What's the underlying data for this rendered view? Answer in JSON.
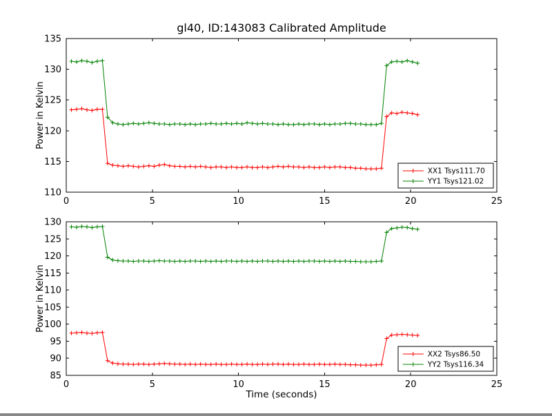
{
  "figure": {
    "title": "gl40, ID:143083 Calibrated Amplitude",
    "background_color": "#ffffff",
    "axis_color": "#000000"
  },
  "chart_data": [
    {
      "type": "line",
      "title": "gl40, ID:143083 Calibrated Amplitude",
      "xlabel": "",
      "ylabel": "Power in Kelvin",
      "xlim": [
        0,
        25
      ],
      "ylim": [
        110,
        135
      ],
      "xticks": [
        0,
        5,
        10,
        15,
        20,
        25
      ],
      "yticks": [
        110,
        115,
        120,
        125,
        130,
        135
      ],
      "grid": false,
      "legend_position": "lower right",
      "marker": "+",
      "x": [
        0.3,
        0.6,
        0.9,
        1.2,
        1.5,
        1.8,
        2.1,
        2.4,
        2.7,
        3.0,
        3.3,
        3.6,
        3.9,
        4.2,
        4.5,
        4.8,
        5.1,
        5.4,
        5.7,
        6.0,
        6.3,
        6.6,
        6.9,
        7.2,
        7.5,
        7.8,
        8.1,
        8.4,
        8.7,
        9.0,
        9.3,
        9.6,
        9.9,
        10.2,
        10.5,
        10.8,
        11.1,
        11.4,
        11.7,
        12.0,
        12.3,
        12.6,
        12.9,
        13.2,
        13.5,
        13.8,
        14.1,
        14.4,
        14.7,
        15.0,
        15.3,
        15.6,
        15.9,
        16.2,
        16.5,
        16.8,
        17.1,
        17.4,
        17.7,
        18.0,
        18.3,
        18.6,
        18.9,
        19.2,
        19.5,
        19.8,
        20.1,
        20.4
      ],
      "series": [
        {
          "name": "XX1 Tsys111.70",
          "color": "#ff0000",
          "values": [
            123.4,
            123.5,
            123.6,
            123.4,
            123.3,
            123.5,
            123.5,
            114.7,
            114.4,
            114.3,
            114.2,
            114.3,
            114.2,
            114.1,
            114.2,
            114.3,
            114.2,
            114.4,
            114.5,
            114.3,
            114.2,
            114.2,
            114.1,
            114.2,
            114.1,
            114.2,
            114.1,
            114.0,
            114.1,
            114.1,
            114.0,
            114.1,
            114.0,
            114.0,
            114.1,
            114.0,
            114.0,
            114.1,
            114.0,
            114.1,
            114.2,
            114.1,
            114.2,
            114.1,
            114.1,
            114.0,
            114.1,
            114.0,
            114.0,
            114.1,
            114.0,
            114.1,
            114.1,
            114.0,
            114.0,
            113.9,
            113.9,
            113.8,
            113.8,
            113.8,
            113.9,
            122.3,
            122.9,
            122.8,
            123.0,
            122.9,
            122.8,
            122.6
          ]
        },
        {
          "name": "YY1 Tsys121.02",
          "color": "#008000",
          "values": [
            131.3,
            131.2,
            131.4,
            131.3,
            131.1,
            131.3,
            131.4,
            122.2,
            121.3,
            121.1,
            121.0,
            121.1,
            121.2,
            121.1,
            121.2,
            121.3,
            121.2,
            121.1,
            121.1,
            121.0,
            121.1,
            121.1,
            121.0,
            121.1,
            121.0,
            121.1,
            121.1,
            121.2,
            121.1,
            121.1,
            121.2,
            121.1,
            121.2,
            121.1,
            121.3,
            121.2,
            121.1,
            121.2,
            121.1,
            121.1,
            121.0,
            121.1,
            121.0,
            121.0,
            121.1,
            121.0,
            121.1,
            121.1,
            121.0,
            121.1,
            121.0,
            121.1,
            121.1,
            121.2,
            121.2,
            121.1,
            121.1,
            121.0,
            121.0,
            121.0,
            121.2,
            130.6,
            131.2,
            131.3,
            131.2,
            131.4,
            131.2,
            131.0
          ]
        }
      ]
    },
    {
      "type": "line",
      "title": "",
      "xlabel": "Time (seconds)",
      "ylabel": "Power in Kelvin",
      "xlim": [
        0,
        25
      ],
      "ylim": [
        85,
        130
      ],
      "xticks": [
        0,
        5,
        10,
        15,
        20,
        25
      ],
      "yticks": [
        85,
        90,
        95,
        100,
        105,
        110,
        115,
        120,
        125,
        130
      ],
      "grid": false,
      "legend_position": "lower right",
      "marker": "+",
      "x": [
        0.3,
        0.6,
        0.9,
        1.2,
        1.5,
        1.8,
        2.1,
        2.4,
        2.7,
        3.0,
        3.3,
        3.6,
        3.9,
        4.2,
        4.5,
        4.8,
        5.1,
        5.4,
        5.7,
        6.0,
        6.3,
        6.6,
        6.9,
        7.2,
        7.5,
        7.8,
        8.1,
        8.4,
        8.7,
        9.0,
        9.3,
        9.6,
        9.9,
        10.2,
        10.5,
        10.8,
        11.1,
        11.4,
        11.7,
        12.0,
        12.3,
        12.6,
        12.9,
        13.2,
        13.5,
        13.8,
        14.1,
        14.4,
        14.7,
        15.0,
        15.3,
        15.6,
        15.9,
        16.2,
        16.5,
        16.8,
        17.1,
        17.4,
        17.7,
        18.0,
        18.3,
        18.6,
        18.9,
        19.2,
        19.5,
        19.8,
        20.1,
        20.4
      ],
      "series": [
        {
          "name": "XX2 Tsys86.50",
          "color": "#ff0000",
          "values": [
            97.4,
            97.5,
            97.6,
            97.4,
            97.3,
            97.5,
            97.6,
            89.3,
            88.6,
            88.4,
            88.3,
            88.3,
            88.2,
            88.3,
            88.3,
            88.2,
            88.3,
            88.4,
            88.5,
            88.4,
            88.3,
            88.3,
            88.2,
            88.3,
            88.2,
            88.3,
            88.2,
            88.2,
            88.3,
            88.2,
            88.2,
            88.3,
            88.2,
            88.2,
            88.3,
            88.2,
            88.2,
            88.3,
            88.2,
            88.3,
            88.3,
            88.2,
            88.3,
            88.2,
            88.2,
            88.3,
            88.2,
            88.2,
            88.3,
            88.2,
            88.2,
            88.3,
            88.2,
            88.2,
            88.1,
            88.1,
            88.0,
            88.0,
            88.0,
            88.1,
            88.2,
            95.8,
            96.8,
            96.9,
            97.0,
            96.9,
            96.8,
            96.7
          ]
        },
        {
          "name": "YY2 Tsys116.34",
          "color": "#008000",
          "values": [
            128.5,
            128.4,
            128.6,
            128.5,
            128.3,
            128.5,
            128.6,
            119.6,
            118.8,
            118.6,
            118.5,
            118.5,
            118.4,
            118.5,
            118.5,
            118.4,
            118.5,
            118.6,
            118.5,
            118.5,
            118.4,
            118.5,
            118.4,
            118.5,
            118.5,
            118.4,
            118.5,
            118.4,
            118.5,
            118.4,
            118.5,
            118.5,
            118.4,
            118.5,
            118.4,
            118.5,
            118.4,
            118.5,
            118.5,
            118.4,
            118.5,
            118.4,
            118.5,
            118.4,
            118.5,
            118.4,
            118.5,
            118.5,
            118.4,
            118.5,
            118.4,
            118.5,
            118.4,
            118.5,
            118.4,
            118.4,
            118.3,
            118.3,
            118.3,
            118.4,
            118.5,
            126.9,
            128.0,
            128.2,
            128.4,
            128.3,
            128.0,
            127.8
          ]
        }
      ]
    }
  ]
}
